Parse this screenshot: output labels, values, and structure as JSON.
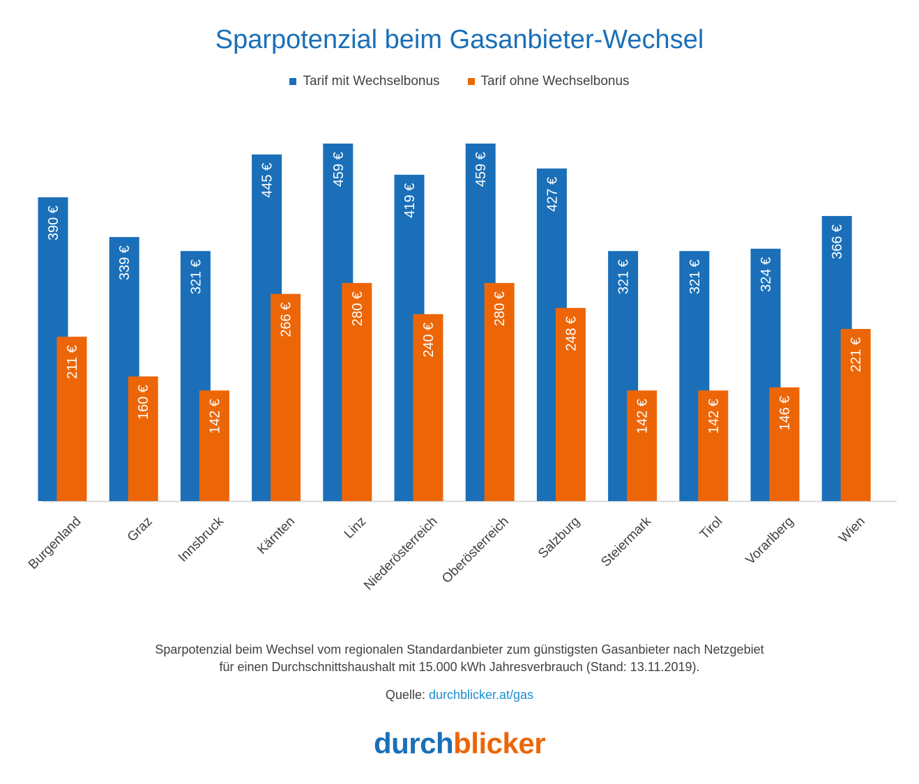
{
  "title": "Sparpotenzial beim Gasanbieter-Wechsel",
  "legend": [
    {
      "label": "Tarif mit Wechselbonus",
      "color": "#1a6fb8"
    },
    {
      "label": "Tarif ohne Wechselbonus",
      "color": "#ec6608"
    }
  ],
  "chart_data": {
    "type": "bar",
    "categories": [
      "Burgenland",
      "Graz",
      "Innsbruck",
      "Kärnten",
      "Linz",
      "Niederösterreich",
      "Oberösterreich",
      "Salzburg",
      "Steiermark",
      "Tirol",
      "Vorarlberg",
      "Wien"
    ],
    "series": [
      {
        "name": "Tarif mit Wechselbonus",
        "color": "#1a6fb8",
        "values": [
          390,
          339,
          321,
          445,
          459,
          419,
          459,
          427,
          321,
          321,
          324,
          366
        ],
        "labels": [
          "390 €",
          "339 €",
          "321 €",
          "445 €",
          "459 €",
          "419 €",
          "459 €",
          "427 €",
          "321 €",
          "321 €",
          "324 €",
          "366 €"
        ]
      },
      {
        "name": "Tarif ohne Wechselbonus",
        "color": "#ec6608",
        "values": [
          211,
          160,
          142,
          266,
          280,
          240,
          280,
          248,
          142,
          142,
          146,
          221
        ],
        "labels": [
          "211 €",
          "160 €",
          "142 €",
          "266 €",
          "280 €",
          "240 €",
          "280 €",
          "248 €",
          "142 €",
          "142 €",
          "146 €",
          "221 €"
        ]
      }
    ],
    "ylim": [
      0,
      500
    ],
    "grid": false,
    "legend_position": "top"
  },
  "note_line1": "Sparpotenzial beim Wechsel vom regionalen Standardanbieter zum günstigsten Gasanbieter nach Netzgebiet",
  "note_line2": "für einen Durchschnittshaushalt mit 15.000 kWh Jahresverbrauch (Stand: 13.11.2019).",
  "source_label": "Quelle:",
  "source_link": "durchblicker.at/gas",
  "logo": {
    "part1": "durch",
    "part2": "blicker"
  }
}
